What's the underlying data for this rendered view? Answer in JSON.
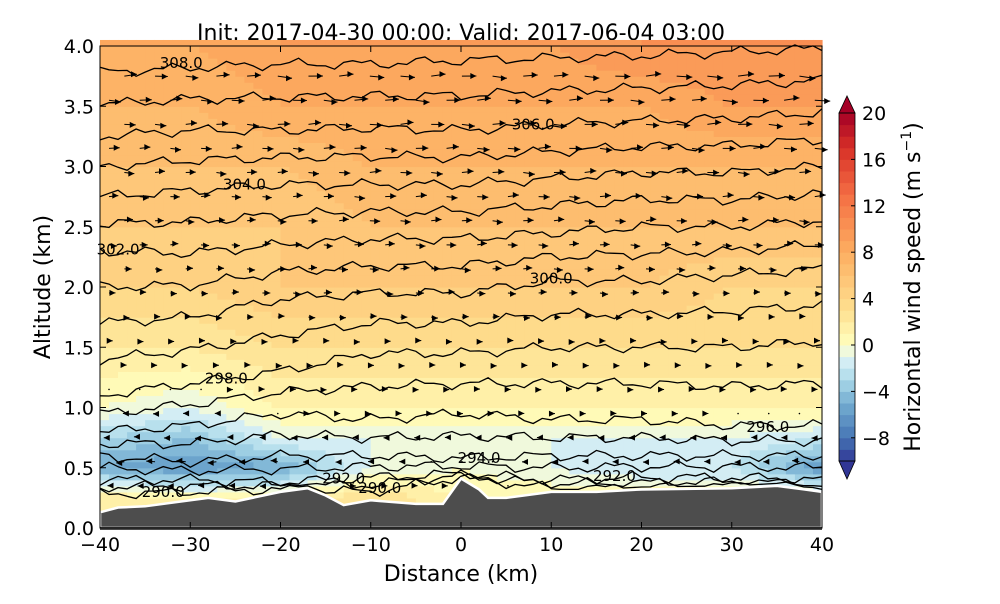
{
  "chart_data": {
    "type": "heatmap",
    "title": "Init: 2017-04-30 00:00; Valid: 2017-06-04 03:00",
    "xlabel": "Distance (km)",
    "ylabel": "Altitude (km)",
    "xlim": [
      -40,
      40
    ],
    "ylim": [
      0,
      4
    ],
    "xticks": [
      "−40",
      "−30",
      "−20",
      "−10",
      "0",
      "10",
      "20",
      "30",
      "40"
    ],
    "yticks": [
      "0.0",
      "0.5",
      "1.0",
      "1.5",
      "2.0",
      "2.5",
      "3.0",
      "3.5",
      "4.0"
    ],
    "grid": false,
    "colorbar": {
      "label": "Horizontal wind speed (m s",
      "label_sup": "−1",
      "label_close": ")",
      "range": [
        -10,
        20
      ],
      "step": 1,
      "extend": "both",
      "ticks": [
        "−8",
        "−4",
        "0",
        "4",
        "8",
        "12",
        "16",
        "20"
      ],
      "tick_values": [
        -8,
        -4,
        0,
        4,
        8,
        12,
        16,
        20
      ],
      "colormap_stops": [
        [
          -10,
          "#313695"
        ],
        [
          -8,
          "#4575b4"
        ],
        [
          -5,
          "#74add1"
        ],
        [
          -3,
          "#abd9e9"
        ],
        [
          -1,
          "#e0f3f8"
        ],
        [
          0,
          "#ffffbf"
        ],
        [
          3,
          "#fee090"
        ],
        [
          8,
          "#fdae61"
        ],
        [
          13,
          "#f46d43"
        ],
        [
          17,
          "#d73027"
        ],
        [
          20,
          "#a50026"
        ]
      ]
    },
    "wind_field": {
      "x_km": [
        -40,
        -30,
        -20,
        -10,
        0,
        10,
        20,
        30,
        40
      ],
      "z_km": [
        0.25,
        0.5,
        0.75,
        1.0,
        1.5,
        2.0,
        2.5,
        3.0,
        3.5,
        4.0
      ],
      "speed_ms": [
        [
          2,
          1,
          1,
          3,
          1,
          1,
          1,
          1,
          1
        ],
        [
          -5,
          -6,
          -5,
          -1,
          0,
          -1,
          -2,
          -2,
          -6
        ],
        [
          -3,
          -4,
          -1,
          -1,
          -1,
          -1,
          -1,
          -1,
          -2
        ],
        [
          0,
          -1,
          1,
          1,
          1,
          1,
          1,
          1,
          1
        ],
        [
          2,
          2,
          3,
          3,
          3,
          3,
          3,
          3,
          3
        ],
        [
          4,
          4,
          5,
          5,
          5,
          5,
          5,
          4,
          4
        ],
        [
          5,
          5,
          5,
          6,
          6,
          6,
          6,
          6,
          6
        ],
        [
          6,
          6,
          6,
          7,
          7,
          7,
          7,
          7,
          7
        ],
        [
          7,
          7,
          8,
          8,
          8,
          8,
          8,
          9,
          9
        ],
        [
          8,
          8,
          9,
          9,
          9,
          9,
          10,
          10,
          10
        ]
      ]
    },
    "isentropes": {
      "x_km": [
        -40,
        -30,
        -20,
        -10,
        0,
        10,
        20,
        30,
        40
      ],
      "levels": [
        {
          "theta": 290,
          "z_km": [
            0.28,
            0.3,
            0.32,
            0.3,
            0.42,
            0.33,
            0.33,
            0.35,
            0.33
          ]
        },
        {
          "theta": 292,
          "z_km": [
            0.4,
            0.4,
            0.38,
            0.42,
            0.45,
            0.4,
            0.42,
            0.42,
            0.4
          ]
        },
        {
          "theta": 294,
          "z_km": [
            0.6,
            0.55,
            0.6,
            0.6,
            0.58,
            0.6,
            0.6,
            0.6,
            0.6
          ]
        },
        {
          "theta": 296,
          "z_km": [
            0.8,
            0.85,
            0.95,
            0.9,
            0.95,
            0.9,
            0.9,
            0.85,
            0.85
          ]
        },
        {
          "theta": 298,
          "z_km": [
            1.1,
            1.2,
            1.3,
            1.45,
            1.45,
            1.5,
            1.5,
            1.5,
            1.55
          ]
        },
        {
          "theta": 300,
          "z_km": [
            1.7,
            1.75,
            1.9,
            1.95,
            1.95,
            2.05,
            2.05,
            2.1,
            2.15
          ]
        },
        {
          "theta": 302,
          "z_km": [
            2.3,
            2.28,
            2.35,
            2.4,
            2.4,
            2.45,
            2.5,
            2.5,
            2.55
          ]
        },
        {
          "theta": 304,
          "z_km": [
            2.75,
            2.8,
            2.85,
            2.85,
            2.85,
            2.9,
            2.95,
            2.95,
            3.0
          ]
        },
        {
          "theta": 306,
          "z_km": [
            3.25,
            3.3,
            3.3,
            3.32,
            3.3,
            3.35,
            3.38,
            3.4,
            3.45
          ]
        },
        {
          "theta": 308,
          "z_km": [
            3.78,
            3.82,
            3.85,
            3.85,
            3.88,
            3.9,
            3.92,
            3.95,
            3.98
          ]
        }
      ],
      "labels": [
        {
          "text": "308.0",
          "x": -31,
          "z": 3.86
        },
        {
          "text": "306.0",
          "x": 8,
          "z": 3.35
        },
        {
          "text": "304.0",
          "x": -24,
          "z": 2.85
        },
        {
          "text": "302.0",
          "x": -38,
          "z": 2.31
        },
        {
          "text": "300.0",
          "x": 10,
          "z": 2.07
        },
        {
          "text": "298.0",
          "x": -26,
          "z": 1.24
        },
        {
          "text": "296.0",
          "x": 34,
          "z": 0.84
        },
        {
          "text": "294.0",
          "x": 2,
          "z": 0.58
        },
        {
          "text": "292.0",
          "x": -13,
          "z": 0.41
        },
        {
          "text": "292.0",
          "x": 17,
          "z": 0.43
        },
        {
          "text": "290.0",
          "x": -33,
          "z": 0.3
        },
        {
          "text": "290.0",
          "x": -9,
          "z": 0.33
        }
      ]
    },
    "terrain": {
      "color": "#4d4d4d",
      "x_km": [
        -40,
        -38,
        -35,
        -30,
        -28,
        -25,
        -20,
        -17,
        -15,
        -13,
        -10,
        -5,
        -2,
        0,
        2,
        3,
        5,
        10,
        15,
        20,
        30,
        35,
        38,
        40
      ],
      "z_km": [
        0.13,
        0.17,
        0.18,
        0.23,
        0.25,
        0.22,
        0.3,
        0.33,
        0.27,
        0.19,
        0.23,
        0.2,
        0.2,
        0.41,
        0.32,
        0.25,
        0.25,
        0.3,
        0.3,
        0.32,
        0.33,
        0.35,
        0.32,
        0.3
      ]
    }
  }
}
